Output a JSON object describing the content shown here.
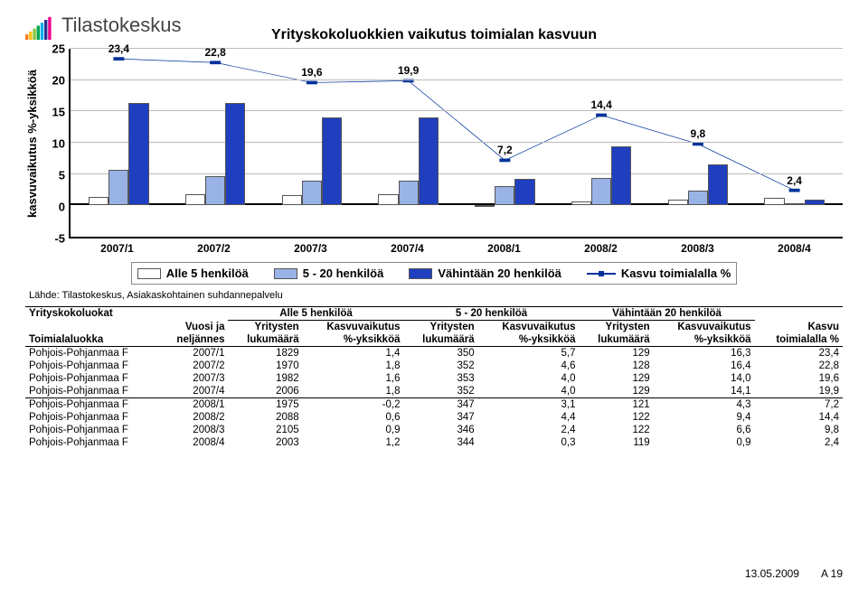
{
  "logo_text": "Tilastokeskus",
  "logo_colors": [
    "#f58220",
    "#ffc20e",
    "#8cc63f",
    "#00a651",
    "#00aeef",
    "#2e3192",
    "#ec008c"
  ],
  "chart": {
    "title": "Yrityskokoluokkien vaikutus toimialan kasvuun",
    "y_label": "kasvuvaikutus %-yksikköä",
    "ylim_min": -5,
    "ylim_max": 25,
    "y_step": 5,
    "categories": [
      "2007/1",
      "2007/2",
      "2007/3",
      "2007/4",
      "2008/1",
      "2008/2",
      "2008/3",
      "2008/4"
    ],
    "series": [
      {
        "name": "Alle 5 henkilöä",
        "color": "#ffffff",
        "values": [
          1.4,
          1.8,
          1.6,
          1.8,
          -0.2,
          0.6,
          0.9,
          1.2
        ]
      },
      {
        "name": "5 - 20 henkilöä",
        "color": "#99b3e6",
        "values": [
          5.7,
          4.6,
          4.0,
          4.0,
          3.1,
          4.4,
          2.4,
          0.3
        ]
      },
      {
        "name": "Vähintään 20 henkilöä",
        "color": "#1f3fbf",
        "values": [
          16.3,
          16.4,
          14.0,
          14.1,
          4.3,
          9.4,
          6.6,
          0.9
        ]
      }
    ],
    "line_series": {
      "name": "Kasvu toimialalla %",
      "color": "#003399",
      "values": [
        23.4,
        22.8,
        19.6,
        19.9,
        7.2,
        14.4,
        9.8,
        2.4
      ],
      "labels": [
        "23,4",
        "22,8",
        "19,6",
        "19,9",
        "7,2",
        "14,4",
        "9,8",
        "2,4"
      ]
    },
    "bar_group_width_pct": 9,
    "bar_width_pct": 2.6
  },
  "legend": {
    "items": [
      {
        "label": "Alle 5 henkilöä",
        "color": "#ffffff",
        "type": "box"
      },
      {
        "label": "5 - 20 henkilöä",
        "color": "#99b3e6",
        "type": "box"
      },
      {
        "label": "Vähintään 20 henkilöä",
        "color": "#1f3fbf",
        "type": "box"
      },
      {
        "label": "Kasvu toimialalla %",
        "color": "#003399",
        "type": "line"
      }
    ]
  },
  "source_line": "Lähde: Tilastokeskus, Asiakaskohtainen suhdannepalvelu",
  "table": {
    "col_group_titles": [
      "Alle 5 henkilöä",
      "5 - 20 henkilöä",
      "Vähintään 20 henkilöä"
    ],
    "header_row1_left1": "Yrityskokoluokat",
    "header_row2_left1": "Toimialaluokka",
    "header_row1_left2": "Vuosi ja",
    "header_row2_left2": "neljännes",
    "sub_cols": [
      "Yritysten",
      "Kasvuvaikutus"
    ],
    "sub_cols2": [
      "lukumäärä",
      "%-yksikköä"
    ],
    "last_col1": "Kasvu",
    "last_col2": "toimialalla %",
    "rows": [
      [
        "Pohjois-Pohjanmaa F",
        "2007/1",
        "1829",
        "1,4",
        "350",
        "5,7",
        "129",
        "16,3",
        "23,4"
      ],
      [
        "Pohjois-Pohjanmaa F",
        "2007/2",
        "1970",
        "1,8",
        "352",
        "4,6",
        "128",
        "16,4",
        "22,8"
      ],
      [
        "Pohjois-Pohjanmaa F",
        "2007/3",
        "1982",
        "1,6",
        "353",
        "4,0",
        "129",
        "14,0",
        "19,6"
      ],
      [
        "Pohjois-Pohjanmaa F",
        "2007/4",
        "2006",
        "1,8",
        "352",
        "4,0",
        "129",
        "14,1",
        "19,9"
      ],
      [
        "Pohjois-Pohjanmaa F",
        "2008/1",
        "1975",
        "-0,2",
        "347",
        "3,1",
        "121",
        "4,3",
        "7,2"
      ],
      [
        "Pohjois-Pohjanmaa F",
        "2008/2",
        "2088",
        "0,6",
        "347",
        "4,4",
        "122",
        "9,4",
        "14,4"
      ],
      [
        "Pohjois-Pohjanmaa F",
        "2008/3",
        "2105",
        "0,9",
        "346",
        "2,4",
        "122",
        "6,6",
        "9,8"
      ],
      [
        "Pohjois-Pohjanmaa F",
        "2008/4",
        "2003",
        "1,2",
        "344",
        "0,3",
        "119",
        "0,9",
        "2,4"
      ]
    ]
  },
  "footer": {
    "date": "13.05.2009",
    "page": "A 19"
  }
}
